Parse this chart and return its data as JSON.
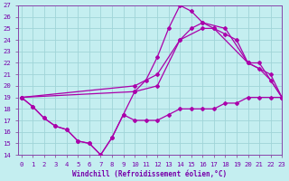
{
  "xlabel": "Windchill (Refroidissement éolien,°C)",
  "xlim": [
    0,
    23
  ],
  "ylim": [
    14,
    27
  ],
  "xtick_labels": [
    "0",
    "1",
    "2",
    "3",
    "4",
    "5",
    "6",
    "7",
    "8",
    "9",
    "10",
    "11",
    "12",
    "13",
    "14",
    "15",
    "16",
    "17",
    "18",
    "19",
    "20",
    "21",
    "22",
    "23"
  ],
  "xticks": [
    0,
    1,
    2,
    3,
    4,
    5,
    6,
    7,
    8,
    9,
    10,
    11,
    12,
    13,
    14,
    15,
    16,
    17,
    18,
    19,
    20,
    21,
    22,
    23
  ],
  "yticks": [
    14,
    15,
    16,
    17,
    18,
    19,
    20,
    21,
    22,
    23,
    24,
    25,
    26,
    27
  ],
  "background_color": "#c4eef0",
  "grid_color": "#a0d4d8",
  "line_color": "#aa00aa",
  "line1_x": [
    0,
    1,
    2,
    3,
    4,
    5,
    6,
    7,
    8,
    9,
    10,
    11,
    12,
    13,
    14,
    15,
    16,
    17,
    18,
    19,
    20,
    21,
    22,
    23
  ],
  "line1_y": [
    19,
    18.2,
    17.2,
    16.5,
    16.2,
    15.2,
    15,
    14,
    15.5,
    17.5,
    17,
    17,
    17,
    17.5,
    18,
    18,
    18,
    18,
    18.5,
    18.5,
    19,
    19,
    19,
    19
  ],
  "line2_x": [
    0,
    1,
    2,
    3,
    4,
    5,
    6,
    7,
    8,
    9,
    10,
    11,
    12,
    13,
    14,
    15,
    16,
    17,
    18,
    19,
    20,
    21,
    22,
    23
  ],
  "line2_y": [
    19,
    18.2,
    17.2,
    16.5,
    16.2,
    15.2,
    15,
    14,
    15.5,
    17.5,
    19.5,
    20.5,
    22.5,
    25,
    27,
    26.5,
    25.5,
    25,
    24.5,
    24,
    22,
    21.5,
    20.5,
    19
  ],
  "line3_x": [
    0,
    10,
    12,
    14,
    16,
    17,
    20,
    21,
    23
  ],
  "line3_y": [
    19,
    20,
    21,
    24,
    25,
    25,
    22,
    22,
    19
  ],
  "line4_x": [
    0,
    10,
    12,
    14,
    15,
    16,
    18,
    20,
    22,
    23
  ],
  "line4_y": [
    19,
    19.5,
    20,
    24,
    25,
    25.5,
    25,
    22,
    21,
    19
  ]
}
